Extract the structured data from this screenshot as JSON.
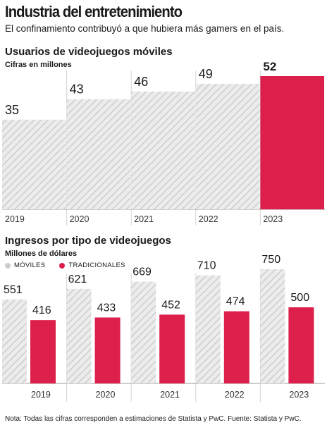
{
  "header": {
    "title": "Industria del entretenimiento",
    "subtitle": "El confinamiento contribuyó a que hubiera más gamers en el país."
  },
  "section1": {
    "title": "Usuarios de videojuegos móviles",
    "subtitle": "Cifras en millones"
  },
  "section2": {
    "title": "Ingresos por tipo de videojuegos",
    "subtitle": "Millones de dólares",
    "legend": {
      "moviles": "MÓVILES",
      "tradicionales": "TRADICIONALES"
    }
  },
  "colors": {
    "hatch_bg": "#ececec",
    "hatch_line": "#c6c6c6",
    "accent": "#dc1f4b",
    "legend_gray": "#cccccc"
  },
  "footnote": "Nota: Todas las cifras corresponden a estimaciones de Statista y PwC. Fuente: Statista y PwC.",
  "chart_data": [
    {
      "type": "bar",
      "title": "Usuarios de videojuegos móviles",
      "subtitle": "Cifras en millones",
      "categories": [
        "2019",
        "2020",
        "2021",
        "2022",
        "2023"
      ],
      "values": [
        35,
        43,
        46,
        49,
        52
      ],
      "value_labels": [
        "35",
        "43",
        "46",
        "49",
        "52"
      ],
      "highlight_index": 4,
      "ylim": [
        0,
        52
      ]
    },
    {
      "type": "bar",
      "title": "Ingresos por tipo de videojuegos",
      "subtitle": "Millones de dólares",
      "categories": [
        "2019",
        "2020",
        "2021",
        "2022",
        "2023"
      ],
      "series": [
        {
          "name": "MÓVILES",
          "values": [
            551,
            621,
            669,
            710,
            750
          ],
          "labels": [
            "551",
            "621",
            "669",
            "710",
            "750"
          ]
        },
        {
          "name": "TRADICIONALES",
          "values": [
            416,
            433,
            452,
            474,
            500
          ],
          "labels": [
            "416",
            "433",
            "452",
            "474",
            "500"
          ]
        }
      ],
      "ylim": [
        0,
        750
      ]
    }
  ]
}
